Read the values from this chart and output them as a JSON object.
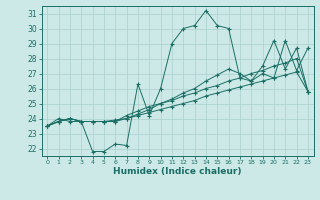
{
  "title": "",
  "xlabel": "Humidex (Indice chaleur)",
  "xlim": [
    -0.5,
    23.5
  ],
  "ylim": [
    21.5,
    31.5
  ],
  "xticks": [
    0,
    1,
    2,
    3,
    4,
    5,
    6,
    7,
    8,
    9,
    10,
    11,
    12,
    13,
    14,
    15,
    16,
    17,
    18,
    19,
    20,
    21,
    22,
    23
  ],
  "yticks": [
    22,
    23,
    24,
    25,
    26,
    27,
    28,
    29,
    30,
    31
  ],
  "bg_color": "#cce9e7",
  "grid_color": "#aacfcc",
  "line_color": "#1a6e65",
  "series": {
    "line1": [
      23.5,
      24.0,
      23.8,
      23.8,
      21.8,
      21.8,
      22.3,
      22.2,
      26.3,
      24.2,
      26.0,
      29.0,
      30.0,
      30.2,
      31.2,
      30.2,
      30.0,
      26.7,
      26.5,
      27.0,
      26.7,
      29.2,
      27.2,
      28.7
    ],
    "line2": [
      23.5,
      23.8,
      24.0,
      23.8,
      23.8,
      23.8,
      23.8,
      24.2,
      24.5,
      24.8,
      25.0,
      25.2,
      25.5,
      25.7,
      26.0,
      26.2,
      26.5,
      26.7,
      27.0,
      27.2,
      27.5,
      27.7,
      28.0,
      25.8
    ],
    "line3": [
      23.5,
      23.8,
      24.0,
      23.8,
      23.8,
      23.8,
      23.9,
      24.0,
      24.2,
      24.4,
      24.6,
      24.8,
      25.0,
      25.2,
      25.5,
      25.7,
      25.9,
      26.1,
      26.3,
      26.5,
      26.7,
      26.9,
      27.1,
      25.8
    ],
    "line4": [
      23.5,
      23.8,
      24.0,
      23.8,
      23.8,
      23.8,
      23.8,
      24.0,
      24.3,
      24.6,
      25.0,
      25.3,
      25.7,
      26.0,
      26.5,
      26.9,
      27.3,
      27.0,
      26.5,
      27.5,
      29.2,
      27.3,
      28.7,
      25.8
    ]
  }
}
